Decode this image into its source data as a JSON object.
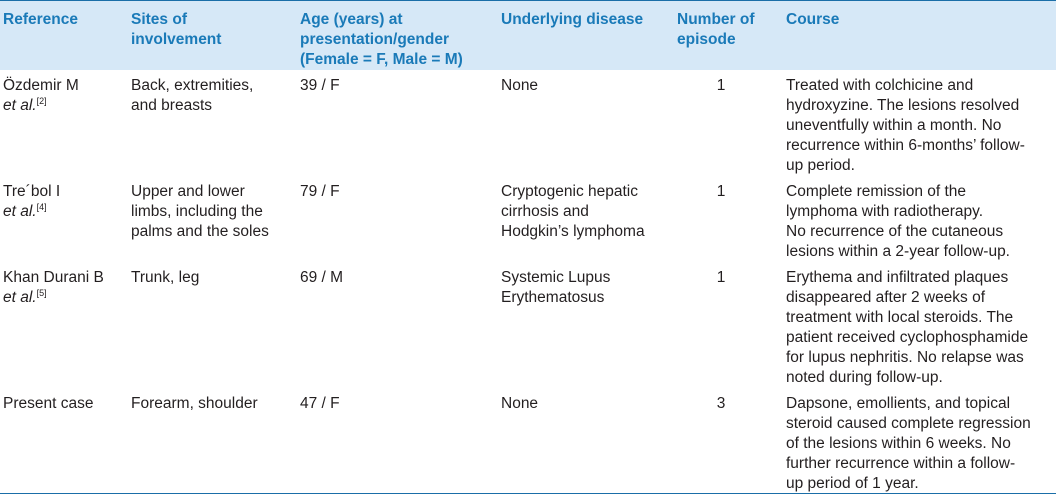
{
  "headers": {
    "reference": [
      "Reference"
    ],
    "sites": [
      "Sites of",
      "involvement"
    ],
    "age": [
      "Age (years) at",
      "presentation/gender",
      "(Female = F, Male = M)"
    ],
    "disease": [
      "Underlying disease"
    ],
    "episodes": [
      "Number of",
      "episode"
    ],
    "course": [
      "Course"
    ]
  },
  "rows": [
    {
      "ref_line1": "Özdemir M",
      "ref_etal": "et al.",
      "ref_sup": "[2]",
      "sites": [
        "Back, extremities,",
        "and breasts"
      ],
      "age": "39 / F",
      "disease": [
        "None"
      ],
      "episodes": "1",
      "course": [
        "Treated with colchicine and",
        "hydroxyzine. The lesions resolved",
        "uneventfully within a month. No",
        "recurrence within 6-months’ follow-",
        "up period."
      ]
    },
    {
      "ref_line1": "Tre´bol I",
      "ref_etal": "et al.",
      "ref_sup": "[4]",
      "sites": [
        "Upper and lower",
        "limbs, including the",
        "palms and the soles"
      ],
      "age": "79 / F",
      "disease": [
        "Cryptogenic hepatic",
        "cirrhosis and",
        "Hodgkin’s lymphoma"
      ],
      "episodes": "1",
      "course": [
        "Complete remission of the",
        "lymphoma with radiotherapy.",
        "No recurrence of the cutaneous",
        "lesions within a 2-year follow-up."
      ]
    },
    {
      "ref_line1": "Khan Durani B",
      "ref_etal": "et al.",
      "ref_sup": "[5]",
      "sites": [
        "Trunk, leg"
      ],
      "age": "69 / M",
      "disease": [
        "Systemic Lupus",
        "Erythematosus"
      ],
      "episodes": "1",
      "course": [
        "Erythema and infiltrated plaques",
        "disappeared after 2 weeks of",
        "treatment with local steroids. The",
        "patient received cyclophosphamide",
        "for lupus nephritis. No relapse was",
        "noted during follow-up."
      ]
    },
    {
      "ref_line1": "Present case",
      "ref_etal": "",
      "ref_sup": "",
      "sites": [
        "Forearm, shoulder"
      ],
      "age": "47 / F",
      "disease": [
        "None"
      ],
      "episodes": "3",
      "course": [
        "Dapsone, emollients, and topical",
        "steroid caused complete regression",
        "of the lesions within 6 weeks. No",
        "further recurrence within a follow-",
        "up period of 1 year."
      ]
    }
  ]
}
